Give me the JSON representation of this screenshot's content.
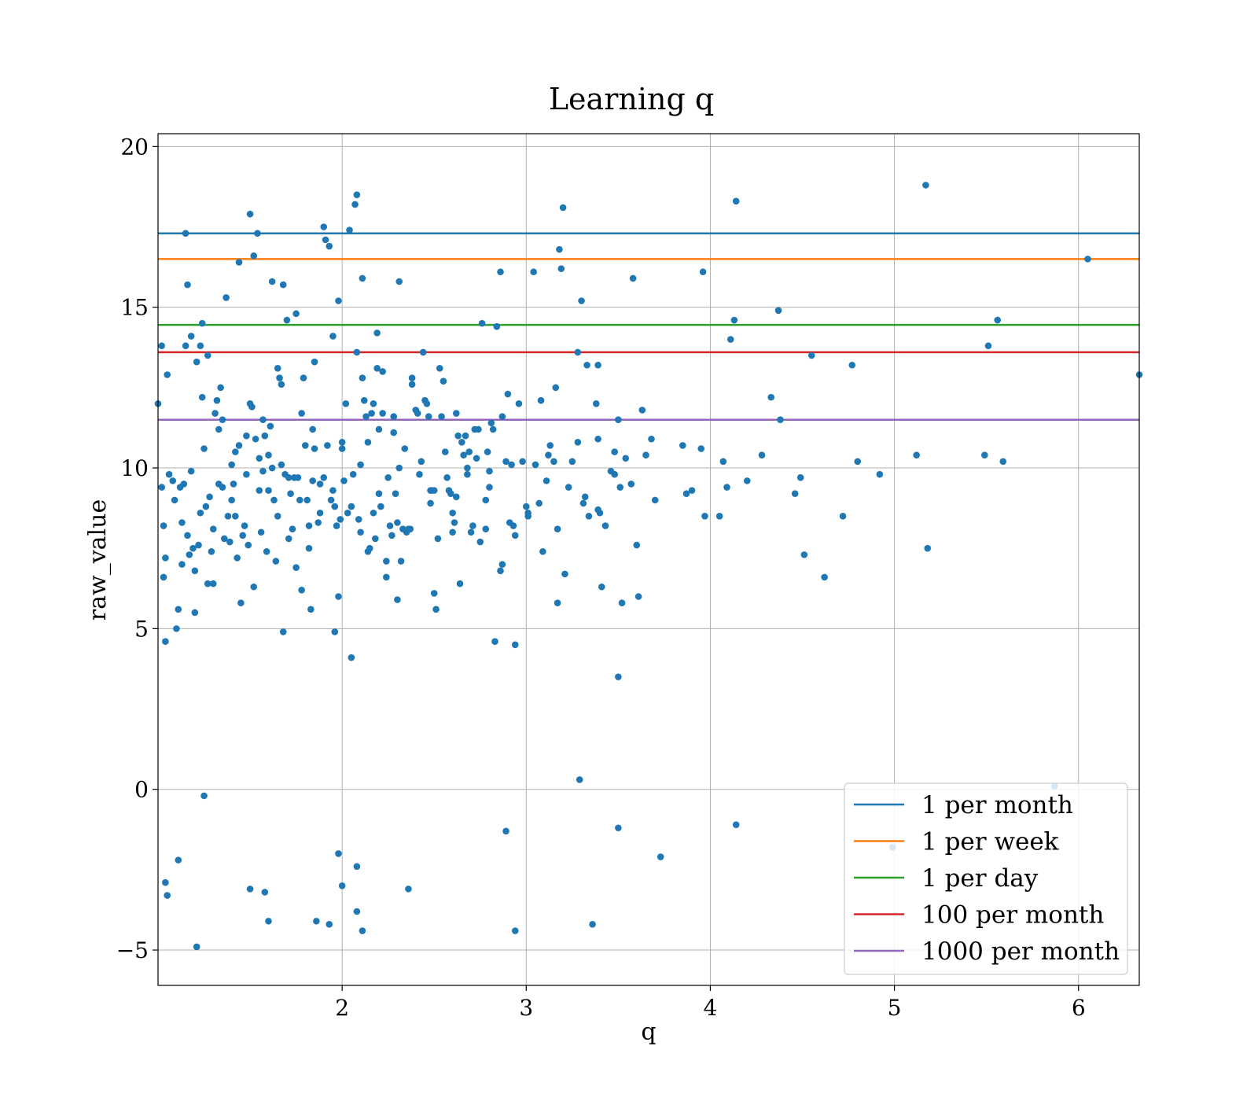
{
  "chart_data": {
    "type": "scatter",
    "title": "Learning q",
    "xlabel": "q",
    "ylabel": "raw_value",
    "xlim": [
      1.0,
      6.33
    ],
    "ylim": [
      -6.1,
      20.4
    ],
    "xticks": [
      2,
      3,
      4,
      5,
      6
    ],
    "xtick_labels": [
      "2",
      "3",
      "4",
      "5",
      "6"
    ],
    "yticks": [
      -5,
      0,
      5,
      10,
      15,
      20
    ],
    "ytick_labels": [
      "−5",
      "0",
      "5",
      "10",
      "15",
      "20"
    ],
    "grid": true,
    "legend_position": "bottom-right",
    "point_color": "#1f77b4",
    "hlines": [
      {
        "name": "1 per month",
        "y": 17.3,
        "color": "#1f77b4"
      },
      {
        "name": "1 per week",
        "y": 16.5,
        "color": "#ff7f0e"
      },
      {
        "name": "1 per day",
        "y": 14.45,
        "color": "#2ca02c"
      },
      {
        "name": "100 per month",
        "y": 13.6,
        "color": "#d62728"
      },
      {
        "name": "1000 per month",
        "y": 11.5,
        "color": "#9467bd"
      }
    ],
    "points": [
      [
        1.0,
        12.0
      ],
      [
        1.02,
        13.8
      ],
      [
        1.03,
        8.2
      ],
      [
        1.02,
        9.4
      ],
      [
        1.03,
        6.6
      ],
      [
        1.04,
        4.6
      ],
      [
        1.05,
        12.9
      ],
      [
        1.04,
        7.2
      ],
      [
        1.06,
        9.8
      ],
      [
        1.08,
        9.6
      ],
      [
        1.09,
        9.0
      ],
      [
        1.1,
        5.0
      ],
      [
        1.11,
        5.6
      ],
      [
        1.12,
        9.4
      ],
      [
        1.13,
        7.0
      ],
      [
        1.13,
        8.3
      ],
      [
        1.14,
        9.5
      ],
      [
        1.15,
        17.3
      ],
      [
        1.15,
        13.8
      ],
      [
        1.16,
        15.7
      ],
      [
        1.16,
        7.9
      ],
      [
        1.17,
        7.3
      ],
      [
        1.18,
        9.9
      ],
      [
        1.18,
        14.1
      ],
      [
        1.19,
        7.5
      ],
      [
        1.2,
        5.5
      ],
      [
        1.2,
        6.8
      ],
      [
        1.21,
        13.3
      ],
      [
        1.22,
        7.6
      ],
      [
        1.23,
        8.6
      ],
      [
        1.23,
        13.8
      ],
      [
        1.24,
        12.2
      ],
      [
        1.24,
        14.5
      ],
      [
        1.25,
        10.6
      ],
      [
        1.26,
        8.8
      ],
      [
        1.27,
        6.4
      ],
      [
        1.27,
        13.5
      ],
      [
        1.28,
        9.1
      ],
      [
        1.29,
        7.4
      ],
      [
        1.3,
        6.4
      ],
      [
        1.3,
        8.1
      ],
      [
        1.31,
        11.7
      ],
      [
        1.32,
        12.1
      ],
      [
        1.33,
        9.5
      ],
      [
        1.33,
        11.2
      ],
      [
        1.34,
        12.5
      ],
      [
        1.35,
        9.4
      ],
      [
        1.35,
        11.5
      ],
      [
        1.36,
        7.8
      ],
      [
        1.37,
        15.3
      ],
      [
        1.38,
        8.5
      ],
      [
        1.39,
        7.7
      ],
      [
        1.4,
        10.1
      ],
      [
        1.4,
        9.0
      ],
      [
        1.41,
        9.5
      ],
      [
        1.42,
        10.5
      ],
      [
        1.42,
        8.5
      ],
      [
        1.43,
        7.2
      ],
      [
        1.44,
        16.4
      ],
      [
        1.44,
        10.7
      ],
      [
        1.45,
        5.8
      ],
      [
        1.46,
        7.9
      ],
      [
        1.47,
        8.2
      ],
      [
        1.48,
        9.8
      ],
      [
        1.48,
        11.0
      ],
      [
        1.49,
        7.6
      ],
      [
        1.5,
        12.0
      ],
      [
        1.5,
        17.9
      ],
      [
        1.51,
        11.9
      ],
      [
        1.52,
        6.3
      ],
      [
        1.52,
        16.6
      ],
      [
        1.53,
        10.9
      ],
      [
        1.54,
        17.3
      ],
      [
        1.55,
        9.3
      ],
      [
        1.55,
        10.3
      ],
      [
        1.56,
        8.0
      ],
      [
        1.57,
        9.9
      ],
      [
        1.57,
        11.5
      ],
      [
        1.58,
        11.0
      ],
      [
        1.59,
        7.4
      ],
      [
        1.6,
        10.4
      ],
      [
        1.6,
        9.3
      ],
      [
        1.61,
        11.3
      ],
      [
        1.62,
        10.0
      ],
      [
        1.62,
        15.8
      ],
      [
        1.63,
        9.0
      ],
      [
        1.64,
        7.1
      ],
      [
        1.65,
        13.1
      ],
      [
        1.65,
        8.5
      ],
      [
        1.66,
        12.8
      ],
      [
        1.67,
        10.1
      ],
      [
        1.67,
        12.6
      ],
      [
        1.68,
        15.7
      ],
      [
        1.68,
        4.9
      ],
      [
        1.69,
        9.8
      ],
      [
        1.7,
        14.6
      ],
      [
        1.71,
        7.8
      ],
      [
        1.71,
        9.7
      ],
      [
        1.72,
        9.2
      ],
      [
        1.73,
        8.1
      ],
      [
        1.74,
        9.7
      ],
      [
        1.75,
        6.9
      ],
      [
        1.75,
        14.8
      ],
      [
        1.76,
        9.7
      ],
      [
        1.77,
        9.0
      ],
      [
        1.78,
        6.2
      ],
      [
        1.78,
        11.7
      ],
      [
        1.79,
        12.8
      ],
      [
        1.8,
        10.7
      ],
      [
        1.81,
        9.0
      ],
      [
        1.82,
        7.5
      ],
      [
        1.82,
        8.2
      ],
      [
        1.83,
        5.6
      ],
      [
        1.84,
        11.2
      ],
      [
        1.84,
        9.6
      ],
      [
        1.85,
        10.6
      ],
      [
        1.85,
        13.3
      ],
      [
        1.87,
        8.3
      ],
      [
        1.88,
        9.5
      ],
      [
        1.88,
        8.6
      ],
      [
        1.9,
        17.5
      ],
      [
        1.9,
        9.7
      ],
      [
        1.91,
        17.1
      ],
      [
        1.92,
        10.7
      ],
      [
        1.93,
        16.9
      ],
      [
        1.94,
        9.0
      ],
      [
        1.95,
        14.1
      ],
      [
        1.95,
        9.3
      ],
      [
        1.96,
        8.8
      ],
      [
        1.96,
        4.9
      ],
      [
        1.97,
        8.2
      ],
      [
        1.98,
        6.0
      ],
      [
        1.98,
        15.2
      ],
      [
        1.99,
        8.4
      ],
      [
        2.0,
        10.6
      ],
      [
        2.0,
        10.8
      ],
      [
        2.01,
        9.6
      ],
      [
        2.02,
        12.0
      ],
      [
        2.03,
        8.6
      ],
      [
        2.04,
        17.4
      ],
      [
        2.05,
        8.8
      ],
      [
        2.05,
        4.1
      ],
      [
        2.06,
        9.8
      ],
      [
        2.07,
        18.2
      ],
      [
        2.08,
        18.5
      ],
      [
        2.08,
        13.6
      ],
      [
        2.09,
        8.4
      ],
      [
        2.1,
        8.0
      ],
      [
        2.1,
        10.1
      ],
      [
        2.11,
        12.8
      ],
      [
        2.11,
        15.9
      ],
      [
        2.12,
        12.1
      ],
      [
        2.13,
        11.6
      ],
      [
        2.14,
        7.4
      ],
      [
        2.14,
        10.8
      ],
      [
        2.15,
        7.5
      ],
      [
        2.16,
        11.7
      ],
      [
        2.17,
        12.0
      ],
      [
        2.17,
        8.6
      ],
      [
        2.18,
        7.8
      ],
      [
        2.19,
        13.1
      ],
      [
        2.19,
        14.2
      ],
      [
        2.2,
        11.2
      ],
      [
        2.2,
        9.2
      ],
      [
        2.21,
        8.8
      ],
      [
        2.22,
        11.7
      ],
      [
        2.22,
        13.0
      ],
      [
        2.24,
        7.1
      ],
      [
        2.24,
        6.6
      ],
      [
        2.25,
        9.7
      ],
      [
        2.26,
        8.2
      ],
      [
        2.27,
        7.9
      ],
      [
        2.28,
        11.6
      ],
      [
        2.28,
        11.1
      ],
      [
        2.29,
        9.2
      ],
      [
        2.3,
        5.9
      ],
      [
        2.3,
        8.3
      ],
      [
        2.31,
        15.8
      ],
      [
        2.31,
        10.0
      ],
      [
        2.32,
        7.1
      ],
      [
        2.33,
        8.1
      ],
      [
        2.34,
        10.6
      ],
      [
        2.35,
        8.0
      ],
      [
        2.36,
        8.1
      ],
      [
        2.37,
        8.1
      ],
      [
        2.38,
        12.6
      ],
      [
        2.38,
        12.8
      ],
      [
        2.4,
        11.8
      ],
      [
        2.41,
        11.7
      ],
      [
        2.42,
        9.8
      ],
      [
        2.43,
        10.2
      ],
      [
        2.44,
        13.6
      ],
      [
        2.45,
        12.1
      ],
      [
        2.46,
        12.0
      ],
      [
        2.47,
        11.6
      ],
      [
        2.48,
        9.3
      ],
      [
        2.48,
        8.9
      ],
      [
        2.49,
        9.3
      ],
      [
        2.5,
        9.3
      ],
      [
        2.5,
        6.1
      ],
      [
        2.51,
        5.6
      ],
      [
        2.52,
        7.8
      ],
      [
        2.53,
        13.1
      ],
      [
        2.54,
        11.6
      ],
      [
        2.55,
        12.7
      ],
      [
        2.56,
        10.5
      ],
      [
        2.57,
        9.7
      ],
      [
        2.58,
        9.3
      ],
      [
        2.59,
        9.2
      ],
      [
        2.6,
        8.6
      ],
      [
        2.6,
        8.0
      ],
      [
        2.61,
        8.3
      ],
      [
        2.62,
        11.7
      ],
      [
        2.62,
        9.1
      ],
      [
        2.63,
        11.0
      ],
      [
        2.64,
        6.4
      ],
      [
        2.65,
        10.8
      ],
      [
        2.66,
        10.4
      ],
      [
        2.67,
        11.0
      ],
      [
        2.68,
        10.0
      ],
      [
        2.68,
        9.8
      ],
      [
        2.69,
        10.5
      ],
      [
        2.7,
        8.0
      ],
      [
        2.71,
        8.2
      ],
      [
        2.72,
        11.2
      ],
      [
        2.73,
        10.3
      ],
      [
        2.74,
        11.2
      ],
      [
        2.75,
        7.7
      ],
      [
        2.76,
        14.5
      ],
      [
        2.78,
        8.1
      ],
      [
        2.78,
        9.0
      ],
      [
        2.79,
        10.5
      ],
      [
        2.8,
        9.4
      ],
      [
        2.8,
        9.9
      ],
      [
        2.81,
        11.4
      ],
      [
        2.82,
        11.2
      ],
      [
        2.83,
        4.6
      ],
      [
        2.84,
        14.4
      ],
      [
        2.86,
        16.1
      ],
      [
        2.87,
        11.6
      ],
      [
        2.87,
        7.0
      ],
      [
        2.86,
        6.8
      ],
      [
        2.89,
        10.2
      ],
      [
        2.9,
        12.3
      ],
      [
        2.91,
        8.3
      ],
      [
        2.92,
        10.1
      ],
      [
        2.93,
        8.2
      ],
      [
        2.94,
        7.9
      ],
      [
        2.94,
        4.5
      ],
      [
        2.96,
        12.0
      ],
      [
        2.98,
        10.2
      ],
      [
        3.0,
        8.8
      ],
      [
        3.01,
        8.6
      ],
      [
        3.01,
        8.5
      ],
      [
        3.04,
        16.1
      ],
      [
        3.05,
        10.1
      ],
      [
        3.07,
        8.9
      ],
      [
        3.08,
        12.1
      ],
      [
        3.09,
        7.4
      ],
      [
        3.11,
        9.6
      ],
      [
        3.12,
        10.4
      ],
      [
        3.13,
        10.7
      ],
      [
        3.15,
        10.2
      ],
      [
        3.16,
        12.5
      ],
      [
        3.17,
        8.1
      ],
      [
        3.17,
        5.8
      ],
      [
        3.18,
        16.8
      ],
      [
        3.19,
        16.2
      ],
      [
        3.2,
        18.1
      ],
      [
        3.21,
        6.7
      ],
      [
        3.23,
        9.4
      ],
      [
        3.25,
        10.2
      ],
      [
        3.28,
        10.8
      ],
      [
        3.28,
        13.6
      ],
      [
        3.3,
        15.2
      ],
      [
        3.31,
        8.9
      ],
      [
        3.32,
        9.1
      ],
      [
        3.33,
        13.2
      ],
      [
        3.34,
        8.5
      ],
      [
        3.38,
        12.0
      ],
      [
        3.39,
        10.9
      ],
      [
        3.39,
        8.7
      ],
      [
        3.39,
        13.2
      ],
      [
        3.4,
        8.6
      ],
      [
        3.41,
        6.3
      ],
      [
        3.43,
        8.2
      ],
      [
        3.46,
        9.9
      ],
      [
        3.48,
        10.5
      ],
      [
        3.48,
        9.8
      ],
      [
        3.5,
        11.5
      ],
      [
        3.51,
        9.4
      ],
      [
        3.52,
        5.8
      ],
      [
        3.54,
        10.3
      ],
      [
        3.57,
        9.5
      ],
      [
        3.58,
        15.9
      ],
      [
        3.6,
        7.6
      ],
      [
        3.61,
        6.0
      ],
      [
        3.63,
        11.8
      ],
      [
        3.65,
        10.4
      ],
      [
        3.68,
        10.9
      ],
      [
        3.7,
        9.0
      ],
      [
        3.85,
        10.7
      ],
      [
        3.87,
        9.2
      ],
      [
        3.9,
        9.3
      ],
      [
        3.95,
        10.6
      ],
      [
        3.96,
        16.1
      ],
      [
        3.97,
        8.5
      ],
      [
        4.05,
        8.5
      ],
      [
        4.07,
        10.2
      ],
      [
        4.09,
        9.4
      ],
      [
        4.11,
        14.0
      ],
      [
        4.13,
        14.6
      ],
      [
        4.14,
        18.3
      ],
      [
        4.2,
        9.6
      ],
      [
        4.28,
        10.4
      ],
      [
        4.33,
        12.2
      ],
      [
        4.37,
        14.9
      ],
      [
        4.38,
        11.5
      ],
      [
        4.46,
        9.2
      ],
      [
        4.49,
        9.7
      ],
      [
        4.51,
        7.3
      ],
      [
        4.55,
        13.5
      ],
      [
        4.62,
        6.6
      ],
      [
        4.72,
        8.5
      ],
      [
        4.77,
        13.2
      ],
      [
        4.8,
        10.2
      ],
      [
        4.92,
        9.8
      ],
      [
        5.12,
        10.4
      ],
      [
        5.17,
        18.8
      ],
      [
        5.18,
        7.5
      ],
      [
        5.49,
        10.4
      ],
      [
        5.51,
        13.8
      ],
      [
        5.56,
        14.6
      ],
      [
        5.59,
        10.2
      ],
      [
        6.05,
        16.5
      ],
      [
        6.33,
        12.9
      ],
      [
        1.25,
        -0.2
      ],
      [
        1.04,
        -2.9
      ],
      [
        1.05,
        -3.3
      ],
      [
        1.11,
        -2.2
      ],
      [
        1.21,
        -4.9
      ],
      [
        1.5,
        -3.1
      ],
      [
        1.58,
        -3.2
      ],
      [
        1.6,
        -4.1
      ],
      [
        1.86,
        -4.1
      ],
      [
        1.93,
        -4.2
      ],
      [
        1.98,
        -2.0
      ],
      [
        2.0,
        -3.0
      ],
      [
        2.08,
        -2.4
      ],
      [
        2.08,
        -3.8
      ],
      [
        2.11,
        -4.4
      ],
      [
        2.36,
        -3.1
      ],
      [
        2.89,
        -1.3
      ],
      [
        2.94,
        -4.4
      ],
      [
        3.29,
        0.3
      ],
      [
        3.36,
        -4.2
      ],
      [
        3.5,
        -1.2
      ],
      [
        3.73,
        -2.1
      ],
      [
        4.14,
        -1.1
      ],
      [
        4.99,
        -1.8
      ],
      [
        5.87,
        0.1
      ],
      [
        3.5,
        3.5
      ]
    ]
  }
}
